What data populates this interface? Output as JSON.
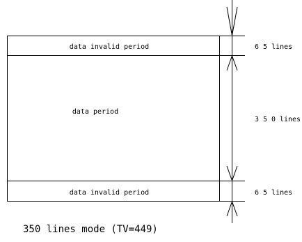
{
  "diagram": {
    "top_invalid_label": "data invalid period",
    "data_label": "data period",
    "bottom_invalid_label": "data invalid period",
    "top_lines_label": "6 5 lines",
    "middle_lines_label": "3 5 0 lines",
    "bottom_lines_label": "6 5 lines",
    "caption": "350 lines mode (TV=449)"
  }
}
